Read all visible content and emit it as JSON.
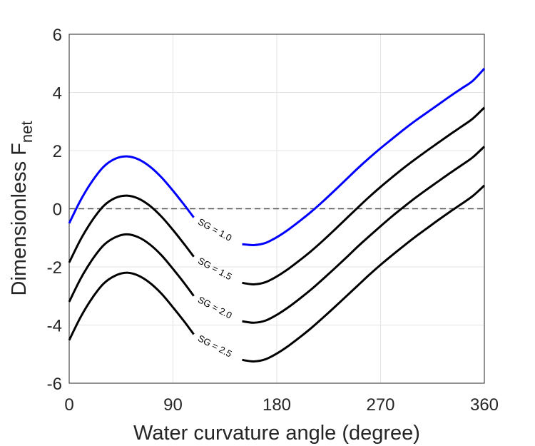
{
  "chart_data": {
    "type": "line",
    "title": "",
    "xlabel": "Water curvature angle (degree)",
    "ylabel": {
      "main": "Dimensionless F",
      "subscript": "net"
    },
    "xlim": [
      0,
      360
    ],
    "ylim": [
      -6,
      6
    ],
    "xticks": [
      0,
      90,
      180,
      270,
      360
    ],
    "xtick_labels": [
      "0",
      "90",
      "180",
      "270",
      "360"
    ],
    "yticks": [
      -6,
      -4,
      -2,
      0,
      2,
      4,
      6
    ],
    "ytick_labels": [
      "-6",
      "-4",
      "-2",
      "0",
      "2",
      "4",
      "6"
    ],
    "grid": true,
    "reference_line": {
      "y": 0,
      "style": "dashed",
      "color": "#555555"
    },
    "series": [
      {
        "name": "SG = 1.0",
        "color": "#0000ff",
        "label_at_x": 130,
        "segments": [
          {
            "x": [
              0,
              10,
              20,
              30,
              40,
              50,
              60,
              70,
              80,
              90,
              100,
              108
            ],
            "y": [
              -0.5,
              0.3,
              0.95,
              1.45,
              1.72,
              1.8,
              1.7,
              1.45,
              1.08,
              0.62,
              0.12,
              -0.3
            ]
          },
          {
            "x": [
              150,
              160,
              170,
              180,
              190,
              200,
              210,
              220,
              230,
              240,
              250,
              260,
              270,
              280,
              290,
              300,
              310,
              320,
              330,
              340,
              350,
              360
            ],
            "y": [
              -1.22,
              -1.25,
              -1.18,
              -0.98,
              -0.72,
              -0.42,
              -0.1,
              0.25,
              0.62,
              1.0,
              1.38,
              1.74,
              2.08,
              2.4,
              2.72,
              3.02,
              3.3,
              3.58,
              3.86,
              4.13,
              4.4,
              4.82
            ]
          }
        ]
      },
      {
        "name": "SG = 1.5",
        "color": "#000000",
        "label_at_x": 130,
        "segments": [
          {
            "x": [
              0,
              10,
              20,
              30,
              40,
              50,
              60,
              70,
              80,
              90,
              100,
              108
            ],
            "y": [
              -1.85,
              -1.05,
              -0.4,
              0.1,
              0.37,
              0.45,
              0.35,
              0.1,
              -0.27,
              -0.73,
              -1.23,
              -1.65
            ]
          },
          {
            "x": [
              150,
              160,
              170,
              180,
              190,
              200,
              210,
              220,
              230,
              240,
              250,
              260,
              270,
              280,
              290,
              300,
              310,
              320,
              330,
              340,
              350,
              360
            ],
            "y": [
              -2.55,
              -2.6,
              -2.53,
              -2.33,
              -2.07,
              -1.77,
              -1.45,
              -1.1,
              -0.73,
              -0.35,
              0.03,
              0.4,
              0.75,
              1.08,
              1.4,
              1.7,
              1.99,
              2.27,
              2.55,
              2.82,
              3.1,
              3.48
            ]
          }
        ]
      },
      {
        "name": "SG = 2.0",
        "color": "#000000",
        "label_at_x": 130,
        "segments": [
          {
            "x": [
              0,
              10,
              20,
              30,
              40,
              50,
              60,
              70,
              80,
              90,
              100,
              108
            ],
            "y": [
              -3.2,
              -2.4,
              -1.75,
              -1.25,
              -0.98,
              -0.88,
              -0.98,
              -1.23,
              -1.6,
              -2.07,
              -2.57,
              -3.0
            ]
          },
          {
            "x": [
              150,
              160,
              170,
              180,
              190,
              200,
              210,
              220,
              230,
              240,
              250,
              260,
              270,
              280,
              290,
              300,
              310,
              320,
              330,
              340,
              350,
              360
            ],
            "y": [
              -3.87,
              -3.92,
              -3.85,
              -3.65,
              -3.39,
              -3.09,
              -2.77,
              -2.42,
              -2.06,
              -1.69,
              -1.31,
              -0.95,
              -0.6,
              -0.26,
              0.06,
              0.37,
              0.66,
              0.94,
              1.22,
              1.49,
              1.77,
              2.14
            ]
          }
        ]
      },
      {
        "name": "SG = 2.5",
        "color": "#000000",
        "label_at_x": 130,
        "segments": [
          {
            "x": [
              0,
              10,
              20,
              30,
              40,
              50,
              60,
              70,
              80,
              90,
              100,
              108
            ],
            "y": [
              -4.52,
              -3.72,
              -3.07,
              -2.57,
              -2.3,
              -2.2,
              -2.3,
              -2.55,
              -2.92,
              -3.39,
              -3.89,
              -4.32
            ]
          },
          {
            "x": [
              150,
              160,
              170,
              180,
              190,
              200,
              210,
              220,
              230,
              240,
              250,
              260,
              270,
              280,
              290,
              300,
              310,
              320,
              330,
              340,
              350,
              360
            ],
            "y": [
              -5.2,
              -5.25,
              -5.18,
              -4.98,
              -4.72,
              -4.42,
              -4.1,
              -3.75,
              -3.39,
              -3.02,
              -2.65,
              -2.28,
              -1.93,
              -1.6,
              -1.28,
              -0.97,
              -0.68,
              -0.39,
              -0.11,
              0.16,
              0.44,
              0.8
            ]
          }
        ]
      }
    ]
  }
}
